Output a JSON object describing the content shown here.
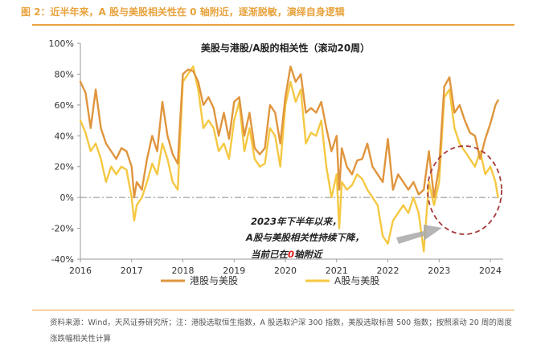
{
  "figure": {
    "title": "图 2：近半年来，A 股与美股相关性在 0 轴附近，逐渐脱敏，演绎自身逻辑",
    "source": "资料来源：Wind，天风证券研究所；注：港股选取恒生指数，A 股选取沪深 300 指数，美股选取标普 500 指数；按照滚动 20 周的周度涨跌幅相关性计算"
  },
  "annotation": {
    "line1": "2023年下半年以来，",
    "line2": "A股与美股相关性持续下降，",
    "line3_prefix": "当前已在",
    "line3_highlight": "0",
    "line3_suffix": "轴附近"
  },
  "colors": {
    "accent": "#E8A33D",
    "series1": "#E0953D",
    "series2": "#F5C842",
    "highlight": "#E02020",
    "circle": "#A63A3A",
    "arrow": "#A8A8A8"
  },
  "chart_data": {
    "type": "line",
    "title": "美股与港股/A股的相关性（滚动20周）",
    "xlabel": "",
    "ylabel": "",
    "xlim": [
      2016.0,
      2024.25
    ],
    "ylim": [
      -0.4,
      1.0
    ],
    "x_ticks": [
      2016,
      2017,
      2018,
      2019,
      2020,
      2021,
      2022,
      2023,
      2024
    ],
    "x_tick_labels": [
      "2016",
      "2017",
      "2018",
      "2019",
      "2020",
      "2021",
      "2022",
      "2023",
      "2024"
    ],
    "y_ticks": [
      -0.4,
      -0.2,
      0,
      0.2,
      0.4,
      0.6,
      0.8,
      1.0
    ],
    "y_tick_labels": [
      "-40%",
      "-20%",
      "0%",
      "20%",
      "40%",
      "60%",
      "80%",
      "100%"
    ],
    "zero_line": "dash-dot",
    "grid": false,
    "legend_position": "bottom",
    "series": [
      {
        "name": "港股与美股",
        "x": [
          2016.0,
          2016.1,
          2016.2,
          2016.3,
          2016.4,
          2016.5,
          2016.6,
          2016.7,
          2016.8,
          2016.9,
          2017.0,
          2017.05,
          2017.1,
          2017.2,
          2017.3,
          2017.4,
          2017.5,
          2017.6,
          2017.7,
          2017.8,
          2017.9,
          2018.0,
          2018.1,
          2018.2,
          2018.3,
          2018.4,
          2018.5,
          2018.6,
          2018.7,
          2018.8,
          2018.9,
          2019.0,
          2019.1,
          2019.2,
          2019.3,
          2019.4,
          2019.5,
          2019.6,
          2019.7,
          2019.8,
          2019.9,
          2020.0,
          2020.1,
          2020.2,
          2020.3,
          2020.4,
          2020.5,
          2020.6,
          2020.7,
          2020.8,
          2020.9,
          2021.0,
          2021.05,
          2021.1,
          2021.2,
          2021.3,
          2021.4,
          2021.5,
          2021.6,
          2021.7,
          2021.8,
          2021.9,
          2022.0,
          2022.1,
          2022.2,
          2022.3,
          2022.4,
          2022.5,
          2022.6,
          2022.7,
          2022.8,
          2022.9,
          2023.0,
          2023.1,
          2023.2,
          2023.3,
          2023.4,
          2023.5,
          2023.6,
          2023.7,
          2023.8,
          2023.9,
          2024.0,
          2024.1,
          2024.15
        ],
        "values": [
          0.75,
          0.68,
          0.45,
          0.7,
          0.45,
          0.35,
          0.3,
          0.25,
          0.32,
          0.3,
          0.2,
          0.0,
          0.1,
          0.05,
          0.25,
          0.4,
          0.3,
          0.62,
          0.4,
          0.28,
          0.22,
          0.8,
          0.83,
          0.82,
          0.75,
          0.6,
          0.65,
          0.58,
          0.4,
          0.55,
          0.38,
          0.62,
          0.65,
          0.4,
          0.55,
          0.32,
          0.28,
          0.32,
          0.6,
          0.55,
          0.35,
          0.65,
          0.85,
          0.75,
          0.8,
          0.55,
          0.58,
          0.55,
          0.62,
          0.45,
          0.3,
          0.4,
          0.05,
          0.32,
          0.2,
          0.15,
          0.24,
          0.25,
          0.35,
          0.2,
          0.15,
          0.1,
          0.38,
          0.05,
          0.15,
          0.1,
          0.05,
          0.1,
          0.02,
          0.05,
          0.3,
          0.0,
          0.2,
          0.72,
          0.78,
          0.55,
          0.6,
          0.5,
          0.42,
          0.4,
          0.25,
          0.38,
          0.48,
          0.6,
          0.63
        ]
      },
      {
        "name": "A股与美股",
        "x": [
          2016.0,
          2016.1,
          2016.2,
          2016.3,
          2016.4,
          2016.5,
          2016.6,
          2016.7,
          2016.8,
          2016.9,
          2017.0,
          2017.05,
          2017.1,
          2017.2,
          2017.3,
          2017.4,
          2017.5,
          2017.6,
          2017.7,
          2017.8,
          2017.9,
          2018.0,
          2018.1,
          2018.2,
          2018.3,
          2018.4,
          2018.5,
          2018.6,
          2018.7,
          2018.8,
          2018.9,
          2019.0,
          2019.1,
          2019.2,
          2019.3,
          2019.4,
          2019.5,
          2019.6,
          2019.7,
          2019.8,
          2019.9,
          2020.0,
          2020.1,
          2020.2,
          2020.3,
          2020.4,
          2020.5,
          2020.6,
          2020.7,
          2020.8,
          2020.9,
          2021.0,
          2021.05,
          2021.1,
          2021.2,
          2021.3,
          2021.4,
          2021.5,
          2021.6,
          2021.7,
          2021.8,
          2021.9,
          2022.0,
          2022.1,
          2022.2,
          2022.3,
          2022.4,
          2022.5,
          2022.6,
          2022.7,
          2022.8,
          2022.9,
          2023.0,
          2023.1,
          2023.2,
          2023.3,
          2023.4,
          2023.5,
          2023.6,
          2023.7,
          2023.8,
          2023.9,
          2024.0,
          2024.1,
          2024.15
        ],
        "values": [
          0.5,
          0.42,
          0.3,
          0.35,
          0.25,
          0.1,
          0.2,
          0.15,
          0.2,
          0.18,
          0.0,
          -0.15,
          -0.05,
          0.0,
          0.1,
          0.22,
          0.15,
          0.35,
          0.25,
          0.1,
          0.05,
          0.75,
          0.8,
          0.85,
          0.7,
          0.45,
          0.5,
          0.45,
          0.3,
          0.35,
          0.25,
          0.5,
          0.62,
          0.3,
          0.45,
          0.25,
          0.2,
          0.22,
          0.45,
          0.4,
          0.2,
          0.6,
          0.75,
          0.62,
          0.7,
          0.35,
          0.42,
          0.4,
          0.5,
          0.2,
          0.0,
          0.15,
          -0.2,
          0.1,
          0.05,
          0.08,
          0.15,
          0.12,
          0.05,
          0.0,
          -0.05,
          -0.25,
          -0.3,
          -0.15,
          -0.1,
          -0.05,
          -0.1,
          0.0,
          -0.1,
          -0.35,
          0.1,
          -0.05,
          0.1,
          0.65,
          0.7,
          0.45,
          0.35,
          0.3,
          0.25,
          0.2,
          0.3,
          0.15,
          0.2,
          0.1,
          0.0
        ]
      }
    ]
  }
}
